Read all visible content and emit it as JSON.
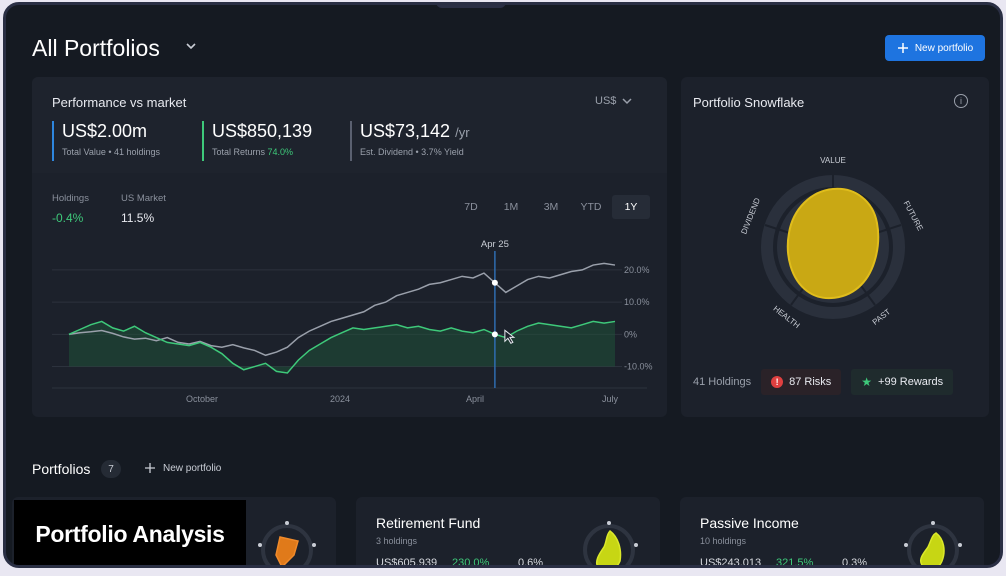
{
  "header": {
    "title": "All Portfolios",
    "new_portfolio_label": "New portfolio"
  },
  "performance": {
    "title": "Performance vs market",
    "currency": "US$",
    "stats": [
      {
        "value": "US$2.00m",
        "unit": "",
        "label": "Total Value • 41 holdings",
        "highlight": "",
        "color": "#2e86de"
      },
      {
        "value": "US$850,139",
        "unit": "",
        "label": "Total Returns ",
        "highlight": "74.0%",
        "color": "#3ec97a"
      },
      {
        "value": "US$73,142",
        "unit": "/yr",
        "label": "Est. Dividend • 3.7% Yield",
        "highlight": "",
        "color": "#5a6070"
      }
    ],
    "holdings_label": "Holdings",
    "holdings_value": "-0.4%",
    "market_label": "US Market",
    "market_value": "11.5%",
    "ranges": [
      "7D",
      "1M",
      "3M",
      "YTD",
      "1Y"
    ],
    "active_range": "1Y",
    "tooltip_date": "Apr 25"
  },
  "chart_data": {
    "type": "line",
    "x_labels": [
      "October",
      "2024",
      "April",
      "July"
    ],
    "y_ticks": [
      "20.0%",
      "10.0%",
      "0%",
      "-10.0%"
    ],
    "ylim": [
      -12,
      24
    ],
    "series": [
      {
        "name": "US Market",
        "color": "#9aa0ab",
        "values": [
          0,
          0.5,
          0.8,
          1.2,
          0.3,
          -0.8,
          -1.5,
          -1.2,
          -2.0,
          -1.0,
          -2.5,
          -3.0,
          -2.2,
          -3.5,
          -4.0,
          -3.2,
          -4.2,
          -5.0,
          -6.5,
          -5.5,
          -4.0,
          -1.0,
          1.0,
          2.5,
          4.0,
          5.0,
          6.0,
          7.0,
          9.0,
          10.0,
          12.0,
          13.0,
          14.0,
          15.5,
          16.0,
          17.0,
          18.0,
          17.5,
          19.0,
          16.0,
          13.0,
          15.0,
          17.0,
          18.0,
          17.5,
          18.5,
          19.5,
          20.0,
          21.5,
          22.0,
          21.5
        ]
      },
      {
        "name": "Holdings",
        "color": "#3ec97a",
        "values": [
          0,
          1.5,
          3.0,
          4.0,
          2.0,
          1.0,
          2.5,
          0.5,
          -1.0,
          -2.5,
          -3.0,
          -3.5,
          -2.5,
          -4.0,
          -6.0,
          -9.0,
          -11.0,
          -10.0,
          -9.0,
          -11.5,
          -12.0,
          -8.0,
          -5.0,
          -3.0,
          -1.0,
          0.5,
          2.0,
          1.5,
          2.0,
          2.5,
          3.0,
          2.0,
          2.5,
          1.5,
          1.0,
          2.0,
          1.0,
          0.5,
          1.5,
          0,
          -1.0,
          1.0,
          2.5,
          3.5,
          3.0,
          2.5,
          2.0,
          3.0,
          4.0,
          3.5,
          4.0
        ]
      }
    ],
    "tooltip_index": 39,
    "grid": true
  },
  "snowflake": {
    "title": "Portfolio Snowflake",
    "axes": [
      "VALUE",
      "FUTURE",
      "PAST",
      "HEALTH",
      "DIVIDEND"
    ],
    "holdings": "41 Holdings",
    "risks": "87 Risks",
    "rewards": "+99 Rewards"
  },
  "portfolios": {
    "title": "Portfolios",
    "count": "7",
    "new_label": "New portfolio",
    "overlay_label": "Portfolio Analysis",
    "cards": [
      {
        "name": "",
        "holdings": "",
        "value": "",
        "return": "",
        "yield": ""
      },
      {
        "name": "Retirement Fund",
        "holdings": "3 holdings",
        "value": "US$605,939",
        "return": "230.0%",
        "yield": "0.6%"
      },
      {
        "name": "Passive Income",
        "holdings": "10 holdings",
        "value": "US$243,013",
        "return": "321.5%",
        "yield": "0.3%"
      }
    ]
  }
}
